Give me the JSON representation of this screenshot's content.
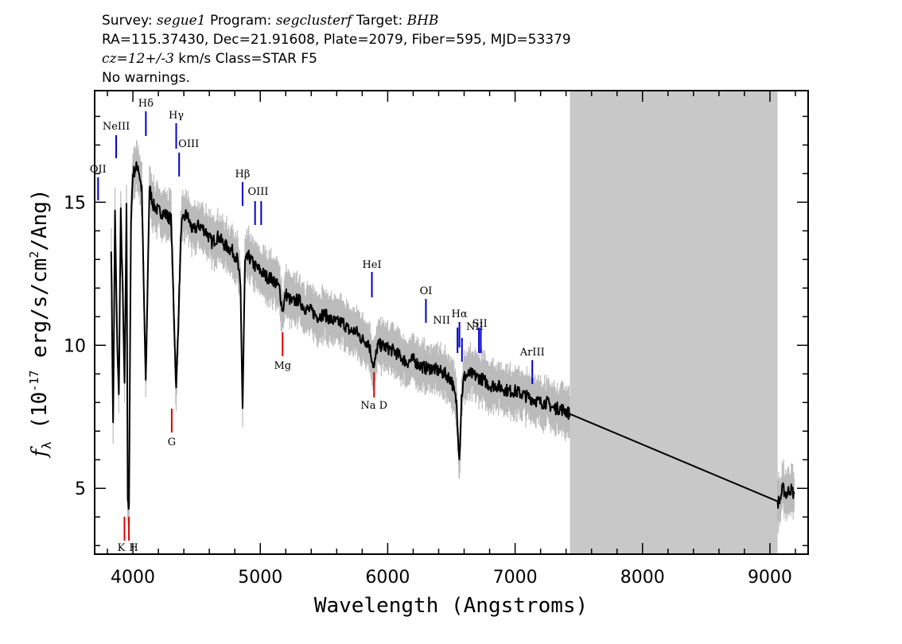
{
  "header": {
    "survey_label": "Survey:",
    "survey": "segue1",
    "program_label": "Program:",
    "program": "segclusterf",
    "target_label": "Target:",
    "target": "BHB",
    "line2": "RA=115.37430, Dec=21.91608, Plate=2079, Fiber=595, MJD=53379",
    "cz": "cz=12+/-3",
    "line3_rest": "km/s Class=STAR F5",
    "line4": "No warnings."
  },
  "chart_data": {
    "type": "line",
    "xlabel": "Wavelength (Angstroms)",
    "ylabel": "f_λ (10^-17 erg/s/cm^2/Ang)",
    "xlim": [
      3700,
      9300
    ],
    "ylim": [
      2.7,
      18.9
    ],
    "x_ticks": [
      4000,
      5000,
      6000,
      7000,
      8000,
      9000
    ],
    "y_ticks": [
      5,
      10,
      15
    ],
    "masked_region": [
      7430,
      9060
    ],
    "series": [
      {
        "color": "#000000",
        "x": [
          3830,
          3845,
          3860,
          3875,
          3890,
          3905,
          3920,
          3935,
          3950,
          3960,
          3970,
          3985,
          4000,
          4040,
          4070,
          4101,
          4130,
          4160,
          4200,
          4250,
          4300,
          4340,
          4380,
          4420,
          4470,
          4520,
          4570,
          4620,
          4670,
          4720,
          4780,
          4820,
          4845,
          4861,
          4880,
          4910,
          4950,
          5000,
          5050,
          5100,
          5150,
          5175,
          5200,
          5250,
          5300,
          5350,
          5400,
          5450,
          5500,
          5550,
          5600,
          5650,
          5700,
          5750,
          5800,
          5850,
          5893,
          5920,
          5950,
          6000,
          6050,
          6100,
          6150,
          6200,
          6250,
          6300,
          6350,
          6400,
          6450,
          6500,
          6540,
          6563,
          6580,
          6600,
          6650,
          6700,
          6750,
          6800,
          6850,
          6900,
          6950,
          7000,
          7050,
          7100,
          7150,
          7200,
          7250,
          7300,
          7350,
          7400,
          7430,
          9060,
          9080,
          9100,
          9130,
          9160,
          9190
        ],
        "values": [
          13.5,
          7.2,
          14.6,
          10.5,
          8.2,
          14.6,
          12.0,
          8.5,
          14.8,
          4.7,
          4.2,
          14.5,
          16.0,
          16.3,
          15.4,
          8.6,
          15.5,
          14.9,
          14.7,
          14.6,
          14.4,
          8.4,
          14.2,
          14.6,
          14.0,
          14.2,
          14.0,
          13.6,
          13.8,
          13.5,
          13.3,
          13.0,
          12.0,
          7.8,
          12.9,
          13.1,
          12.8,
          12.6,
          12.4,
          12.3,
          12.0,
          11.2,
          11.8,
          11.5,
          11.6,
          11.3,
          11.2,
          11.0,
          11.1,
          10.9,
          10.8,
          10.8,
          10.5,
          10.5,
          10.2,
          10.1,
          9.2,
          10.0,
          10.0,
          9.9,
          9.8,
          9.6,
          9.4,
          9.5,
          9.3,
          9.2,
          9.2,
          9.1,
          9.0,
          8.8,
          8.0,
          6.0,
          8.2,
          8.9,
          9.0,
          8.9,
          8.8,
          8.6,
          8.6,
          8.5,
          8.4,
          8.4,
          8.3,
          8.2,
          8.1,
          8.0,
          8.0,
          7.8,
          7.8,
          7.7,
          7.6,
          4.5,
          4.6,
          5.0,
          4.8,
          5.0,
          4.8
        ]
      }
    ],
    "emission_lines": [
      {
        "label": "OII",
        "wave": 3727
      },
      {
        "label": "NeIII",
        "wave": 3869
      },
      {
        "label": "Hδ",
        "wave": 4102
      },
      {
        "label": "Hγ",
        "wave": 4340
      },
      {
        "label": "OIII",
        "wave": 4363
      },
      {
        "label": "Hβ",
        "wave": 4861
      },
      {
        "label": "OIII",
        "wave": 4959
      },
      {
        "label": "OIII",
        "wave": 5007
      },
      {
        "label": "HeI",
        "wave": 5876
      },
      {
        "label": "OI",
        "wave": 6300
      },
      {
        "label": "NII",
        "wave": 6548
      },
      {
        "label": "Hα",
        "wave": 6563
      },
      {
        "label": "NII",
        "wave": 6583
      },
      {
        "label": "SII",
        "wave": 6716
      },
      {
        "label": "SII",
        "wave": 6731
      },
      {
        "label": "ArIII",
        "wave": 7135
      }
    ],
    "absorption_lines": [
      {
        "label": "K",
        "wave": 3934
      },
      {
        "label": "H",
        "wave": 3969
      },
      {
        "label": "G",
        "wave": 4305
      },
      {
        "label": "Mg",
        "wave": 5175
      },
      {
        "label": "Na D",
        "wave": 5893
      }
    ],
    "colors": {
      "emission": "#0000cc",
      "absorption": "#dd0000",
      "noise": "#bbbbbb",
      "mask": "#c8c8c8"
    }
  }
}
